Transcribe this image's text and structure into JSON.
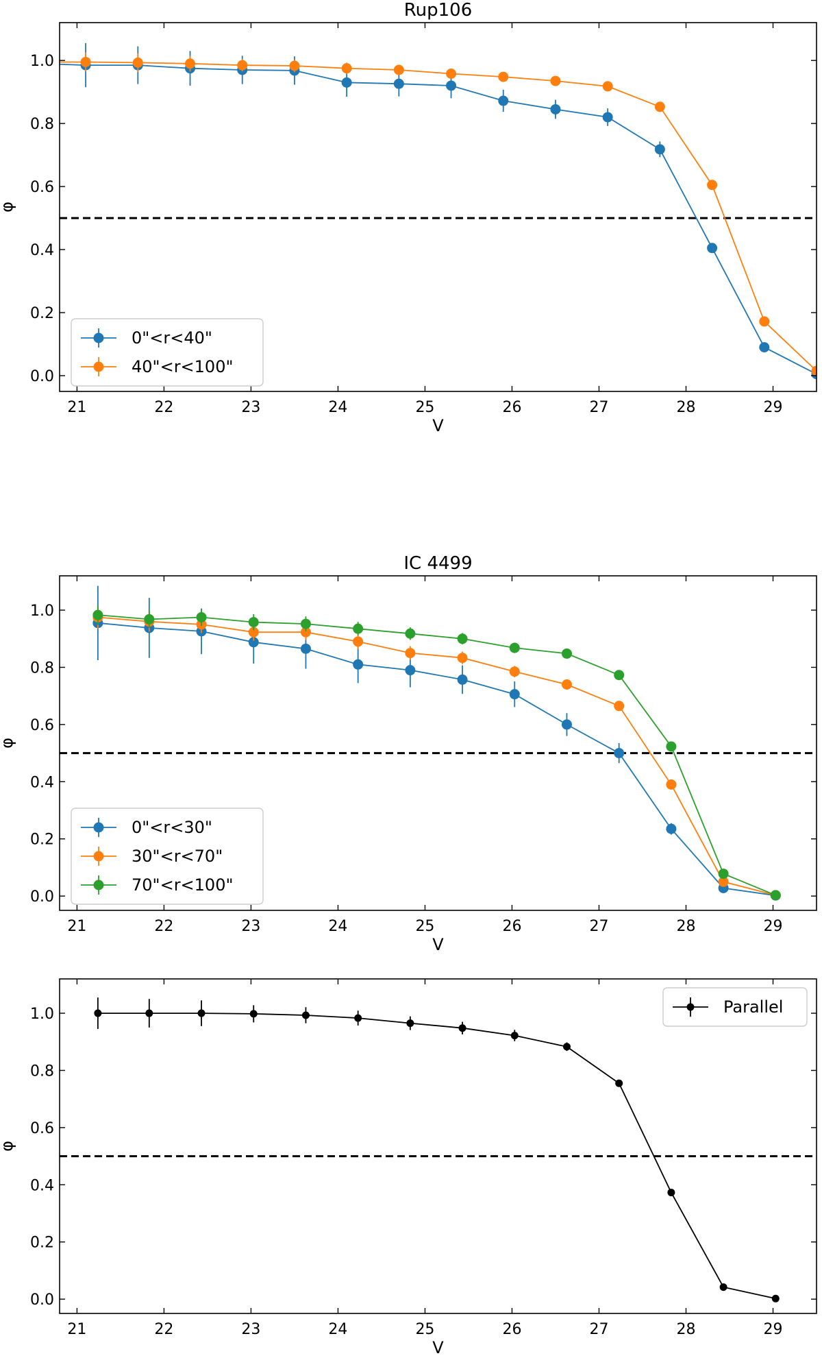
{
  "chart_data": [
    {
      "type": "line",
      "title": "Rup106",
      "xlabel": "V",
      "ylabel": "φ",
      "xlim": [
        20.8,
        29.5
      ],
      "ylim": [
        -0.05,
        1.12
      ],
      "xticks": [
        21,
        22,
        23,
        24,
        25,
        26,
        27,
        28,
        29
      ],
      "yticks": [
        0.0,
        0.2,
        0.4,
        0.6,
        0.8,
        1.0
      ],
      "ytick_labels": [
        "0.0",
        "0.2",
        "0.4",
        "0.6",
        "0.8",
        "1.0"
      ],
      "reference_line": 0.5,
      "legend_position": "lower-left",
      "grid": false,
      "series": [
        {
          "name": "0\"<r<40\"",
          "color": "#1f77b4",
          "x": [
            20.6,
            21.1,
            21.7,
            22.3,
            22.9,
            23.5,
            24.1,
            24.7,
            25.3,
            25.9,
            26.5,
            27.1,
            27.7,
            28.3,
            28.9,
            29.5
          ],
          "y": [
            0.99,
            0.985,
            0.985,
            0.975,
            0.97,
            0.968,
            0.93,
            0.926,
            0.92,
            0.872,
            0.845,
            0.82,
            0.718,
            0.405,
            0.09,
            0.005
          ],
          "yerr": [
            0.07,
            0.07,
            0.06,
            0.055,
            0.045,
            0.045,
            0.045,
            0.04,
            0.04,
            0.035,
            0.03,
            0.028,
            0.025,
            0.012,
            0.008,
            0.005
          ]
        },
        {
          "name": "40\"<r<100\"",
          "color": "#ff7f0e",
          "x": [
            20.6,
            21.1,
            21.7,
            22.3,
            22.9,
            23.5,
            24.1,
            24.7,
            25.3,
            25.9,
            26.5,
            27.1,
            27.7,
            28.3,
            28.9,
            29.5
          ],
          "y": [
            0.995,
            0.995,
            0.993,
            0.99,
            0.985,
            0.983,
            0.975,
            0.97,
            0.958,
            0.948,
            0.935,
            0.918,
            0.853,
            0.605,
            0.172,
            0.015
          ],
          "yerr": [
            0.035,
            0.03,
            0.03,
            0.025,
            0.02,
            0.02,
            0.018,
            0.016,
            0.015,
            0.013,
            0.012,
            0.012,
            0.01,
            0.008,
            0.006,
            0.004
          ]
        }
      ]
    },
    {
      "type": "line",
      "title": "IC 4499",
      "xlabel": "V",
      "ylabel": "φ",
      "xlim": [
        20.8,
        29.5
      ],
      "ylim": [
        -0.05,
        1.12
      ],
      "xticks": [
        21,
        22,
        23,
        24,
        25,
        26,
        27,
        28,
        29
      ],
      "yticks": [
        0.0,
        0.2,
        0.4,
        0.6,
        0.8,
        1.0
      ],
      "ytick_labels": [
        "0.0",
        "0.2",
        "0.4",
        "0.6",
        "0.8",
        "1.0"
      ],
      "reference_line": 0.5,
      "legend_position": "lower-left",
      "grid": false,
      "series": [
        {
          "name": "0\"<r<30\"",
          "color": "#1f77b4",
          "x": [
            21.24,
            21.83,
            22.43,
            23.03,
            23.63,
            24.23,
            24.83,
            25.43,
            26.03,
            26.63,
            27.23,
            27.83,
            28.43,
            29.03
          ],
          "y": [
            0.955,
            0.938,
            0.926,
            0.888,
            0.865,
            0.81,
            0.79,
            0.757,
            0.706,
            0.6,
            0.5,
            0.235,
            0.028,
            0.002
          ],
          "yerr": [
            0.13,
            0.105,
            0.08,
            0.075,
            0.07,
            0.065,
            0.06,
            0.05,
            0.045,
            0.04,
            0.035,
            0.02,
            0.008,
            0.004
          ]
        },
        {
          "name": "30\"<r<70\"",
          "color": "#ff7f0e",
          "x": [
            21.24,
            21.83,
            22.43,
            23.03,
            23.63,
            24.23,
            24.83,
            25.43,
            26.03,
            26.63,
            27.23,
            27.83,
            28.43,
            29.03
          ],
          "y": [
            0.975,
            0.96,
            0.95,
            0.923,
            0.923,
            0.89,
            0.85,
            0.833,
            0.785,
            0.74,
            0.665,
            0.39,
            0.05,
            0.003
          ],
          "yerr": [
            0.04,
            0.035,
            0.03,
            0.03,
            0.028,
            0.026,
            0.024,
            0.022,
            0.02,
            0.018,
            0.016,
            0.012,
            0.006,
            0.003
          ]
        },
        {
          "name": "70\"<r<100\"",
          "color": "#2ca02c",
          "x": [
            21.24,
            21.83,
            22.43,
            23.03,
            23.63,
            24.23,
            24.83,
            25.43,
            26.03,
            26.63,
            27.23,
            27.83,
            28.43,
            29.03
          ],
          "y": [
            0.983,
            0.968,
            0.975,
            0.958,
            0.952,
            0.935,
            0.918,
            0.9,
            0.868,
            0.848,
            0.773,
            0.523,
            0.078,
            0.003
          ],
          "yerr": [
            0.035,
            0.03,
            0.03,
            0.028,
            0.026,
            0.024,
            0.022,
            0.02,
            0.018,
            0.016,
            0.014,
            0.012,
            0.006,
            0.003
          ]
        }
      ]
    },
    {
      "type": "line",
      "title": "",
      "xlabel": "V",
      "ylabel": "φ",
      "xlim": [
        20.8,
        29.5
      ],
      "ylim": [
        -0.05,
        1.12
      ],
      "xticks": [
        21,
        22,
        23,
        24,
        25,
        26,
        27,
        28,
        29
      ],
      "yticks": [
        0.0,
        0.2,
        0.4,
        0.6,
        0.8,
        1.0
      ],
      "ytick_labels": [
        "0.0",
        "0.2",
        "0.4",
        "0.6",
        "0.8",
        "1.0"
      ],
      "reference_line": 0.5,
      "legend_position": "upper-right",
      "grid": false,
      "series": [
        {
          "name": "Parallel",
          "color": "#000000",
          "x": [
            21.24,
            21.83,
            22.43,
            23.03,
            23.63,
            24.23,
            24.83,
            25.43,
            26.03,
            26.63,
            27.23,
            27.83,
            28.43,
            29.03
          ],
          "y": [
            1.0,
            1.0,
            1.0,
            0.998,
            0.993,
            0.983,
            0.965,
            0.948,
            0.922,
            0.883,
            0.755,
            0.373,
            0.042,
            0.002
          ],
          "yerr": [
            0.055,
            0.05,
            0.045,
            0.03,
            0.028,
            0.026,
            0.024,
            0.022,
            0.02,
            0.015,
            0.012,
            0.008,
            0.005,
            0.003
          ]
        }
      ]
    }
  ]
}
